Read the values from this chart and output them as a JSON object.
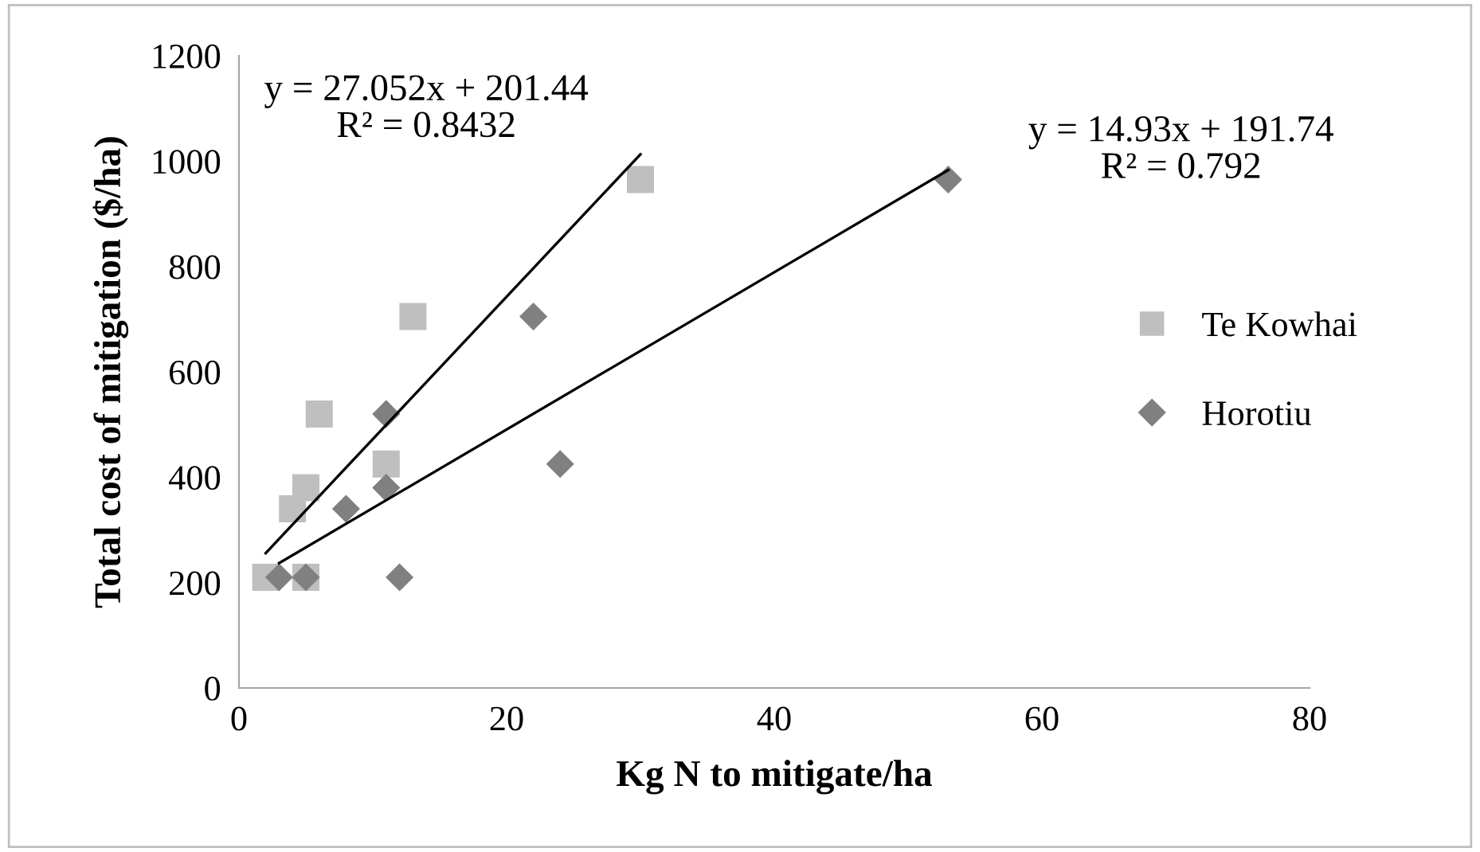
{
  "chart_data": {
    "type": "scatter",
    "xlabel": "Kg N to mitigate/ha",
    "ylabel": "Total cost of mitigation ($/ha)",
    "xlim": [
      0,
      80
    ],
    "xticks": [
      0,
      20,
      40,
      60,
      80
    ],
    "ylim": [
      0,
      1200
    ],
    "yticks": [
      0,
      200,
      400,
      600,
      800,
      1000,
      1200
    ],
    "grid": false,
    "legend": "right",
    "series": [
      {
        "name": "Te Kowhai",
        "marker": "square",
        "color": "#bfbfbf",
        "x": [
          2,
          5,
          4,
          5,
          6,
          11,
          13,
          30
        ],
        "values": [
          210,
          210,
          340,
          380,
          520,
          425,
          705,
          965
        ]
      },
      {
        "name": "Horotiu",
        "marker": "diamond",
        "color": "#808080",
        "x": [
          3,
          5,
          12,
          8,
          11,
          11,
          22,
          24,
          53
        ],
        "values": [
          210,
          210,
          210,
          340,
          380,
          520,
          705,
          425,
          965
        ]
      },
      {
        "type": "line",
        "marker": "none",
        "line_style": "solid",
        "color": "#000000",
        "x": [
          2,
          30
        ],
        "values": [
          256,
          1013
        ]
      },
      {
        "type": "line",
        "marker": "none",
        "line_style": "solid",
        "color": "#000000",
        "x": [
          3,
          53
        ],
        "values": [
          237,
          983
        ]
      }
    ],
    "annotations": [
      "y = 27.052x + 201.44\nR² = 0.8432",
      "y = 14.93x + 191.74\nR² = 0.792"
    ]
  }
}
